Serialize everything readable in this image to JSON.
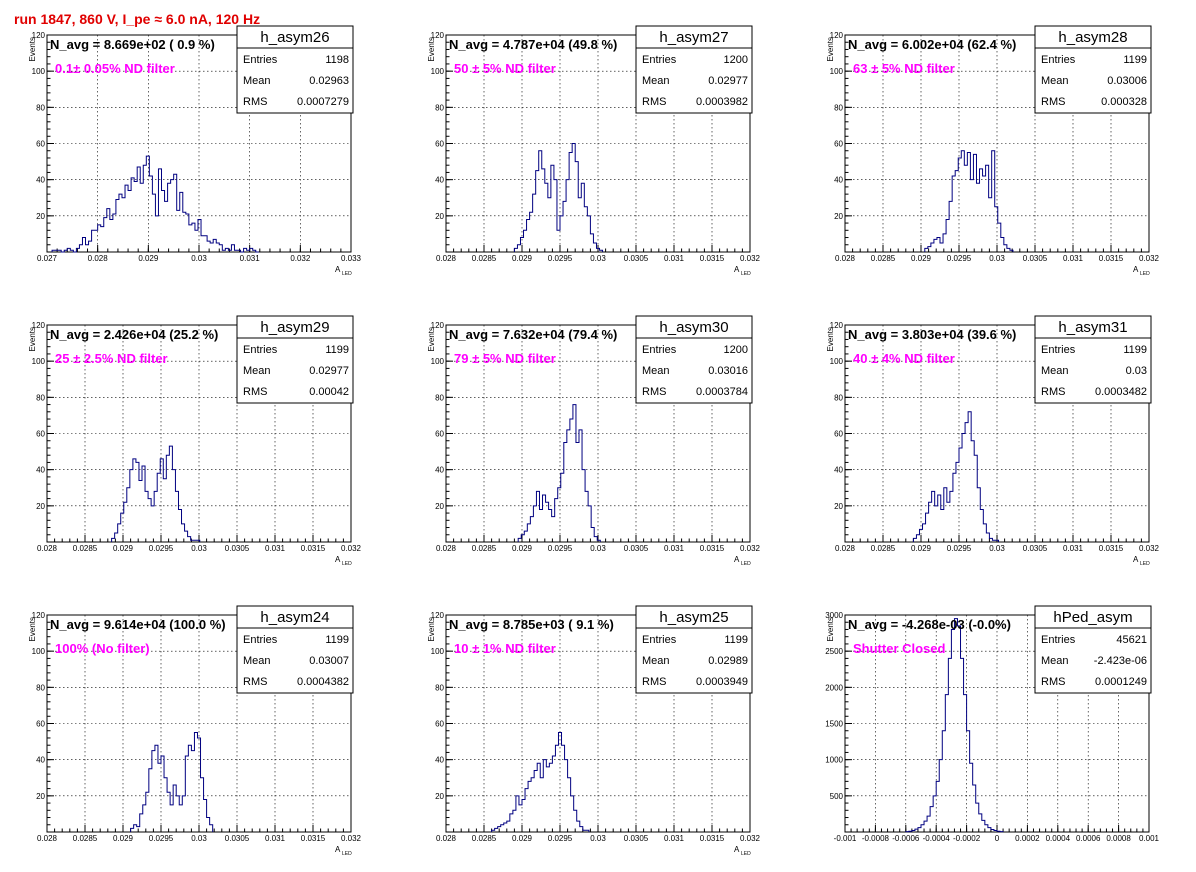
{
  "run_title": "run 1847,   860 V, I_pe ≈ 6.0 nA, 120 Hz",
  "hist_color": "#000080",
  "text_color_filter": "#ff00ff",
  "text_color_run": "#e00000",
  "chart_data": [
    {
      "type": "bar",
      "name": "h_asym26",
      "navg": "N_avg = 8.669e+02 ( 0.9 %)",
      "label": "0.1± 0.05% ND filter",
      "stats": {
        "entries_label": "Entries",
        "entries": "1198",
        "mean_label": "Mean",
        "mean": "0.02963",
        "rms_label": "RMS",
        "rms": "0.0007279"
      },
      "xlim": [
        0.027,
        0.033
      ],
      "ylim": [
        0,
        120
      ],
      "ylabel": "Events",
      "xlabel": "A",
      "xlabel_sub": "LED",
      "xticks": [
        0.027,
        0.028,
        0.029,
        0.03,
        0.031,
        0.032,
        0.033
      ],
      "xtick_labels": [
        "0.027",
        "0.028",
        "0.029",
        "0.03",
        "0.031",
        "0.032",
        "0.033"
      ],
      "yticks": [
        20,
        40,
        60,
        80,
        100,
        120
      ],
      "ytick_labels": [
        "20",
        "40",
        "60",
        "80",
        "100",
        "120"
      ],
      "bins_start": 0.0271,
      "bin_width": 6e-05,
      "values": [
        1,
        1,
        1,
        0,
        1,
        2,
        1,
        0,
        2,
        4,
        8,
        4,
        6,
        12,
        12,
        15,
        14,
        19,
        24,
        18,
        21,
        29,
        32,
        30,
        37,
        34,
        41,
        39,
        47,
        38,
        48,
        53,
        42,
        32,
        20,
        46,
        34,
        28,
        38,
        40,
        43,
        23,
        33,
        22,
        21,
        15,
        16,
        12,
        18,
        9,
        9,
        6,
        5,
        7,
        5,
        4,
        1,
        2,
        1,
        4,
        1,
        1,
        0,
        2,
        1,
        2,
        1,
        0
      ]
    },
    {
      "type": "bar",
      "name": "h_asym27",
      "navg": "N_avg = 4.787e+04 (49.8 %)",
      "label": "50 ± 5% ND filter",
      "stats": {
        "entries_label": "Entries",
        "entries": "1200",
        "mean_label": "Mean",
        "mean": "0.02977",
        "rms_label": "RMS",
        "rms": "0.0003982"
      },
      "xlim": [
        0.028,
        0.032
      ],
      "ylim": [
        0,
        120
      ],
      "ylabel": "Events",
      "xlabel": "A",
      "xlabel_sub": "LED",
      "xticks": [
        0.028,
        0.0285,
        0.029,
        0.0295,
        0.03,
        0.0305,
        0.031,
        0.0315,
        0.032
      ],
      "xtick_labels": [
        "0.028",
        "0.0285",
        "0.029",
        "0.0295",
        "0.03",
        "0.0305",
        "0.031",
        "0.0315",
        "0.032"
      ],
      "yticks": [
        20,
        40,
        60,
        80,
        100,
        120
      ],
      "ytick_labels": [
        "20",
        "40",
        "60",
        "80",
        "100",
        "120"
      ],
      "bins_start": 0.0289,
      "bin_width": 4e-05,
      "values": [
        2,
        4,
        8,
        12,
        18,
        22,
        32,
        45,
        56,
        46,
        38,
        30,
        48,
        40,
        12,
        20,
        28,
        40,
        55,
        60,
        50,
        30,
        38,
        25,
        20,
        10,
        5,
        2,
        1
      ]
    },
    {
      "type": "bar",
      "name": "h_asym28",
      "navg": "N_avg = 6.002e+04 (62.4 %)",
      "label": "63 ± 5% ND filter",
      "stats": {
        "entries_label": "Entries",
        "entries": "1199",
        "mean_label": "Mean",
        "mean": "0.03006",
        "rms_label": "RMS",
        "rms": "0.000328"
      },
      "xlim": [
        0.028,
        0.032
      ],
      "ylim": [
        0,
        120
      ],
      "ylabel": "Events",
      "xlabel": "A",
      "xlabel_sub": "LED",
      "xticks": [
        0.028,
        0.0285,
        0.029,
        0.0295,
        0.03,
        0.0305,
        0.031,
        0.0315,
        0.032
      ],
      "xtick_labels": [
        "0.028",
        "0.0285",
        "0.029",
        "0.0295",
        "0.03",
        "0.0305",
        "0.031",
        "0.0315",
        "0.032"
      ],
      "yticks": [
        20,
        40,
        60,
        80,
        100,
        120
      ],
      "ytick_labels": [
        "20",
        "40",
        "60",
        "80",
        "100",
        "120"
      ],
      "bins_start": 0.02905,
      "bin_width": 4e-05,
      "values": [
        2,
        3,
        5,
        7,
        8,
        5,
        10,
        18,
        28,
        42,
        45,
        52,
        56,
        48,
        55,
        40,
        54,
        38,
        46,
        42,
        48,
        30,
        56,
        25,
        16,
        8,
        4,
        2,
        1
      ]
    },
    {
      "type": "bar",
      "name": "h_asym29",
      "navg": "N_avg = 2.426e+04 (25.2 %)",
      "label": "25 ± 2.5% ND filter",
      "stats": {
        "entries_label": "Entries",
        "entries": "1199",
        "mean_label": "Mean",
        "mean": "0.02977",
        "rms_label": "RMS",
        "rms": "0.00042"
      },
      "xlim": [
        0.028,
        0.032
      ],
      "ylim": [
        0,
        120
      ],
      "ylabel": "Events",
      "xlabel": "A",
      "xlabel_sub": "LED",
      "xticks": [
        0.028,
        0.0285,
        0.029,
        0.0295,
        0.03,
        0.0305,
        0.031,
        0.0315,
        0.032
      ],
      "xtick_labels": [
        "0.028",
        "0.0285",
        "0.029",
        "0.0295",
        "0.03",
        "0.0305",
        "0.031",
        "0.0315",
        "0.032"
      ],
      "yticks": [
        20,
        40,
        60,
        80,
        100,
        120
      ],
      "ytick_labels": [
        "20",
        "40",
        "60",
        "80",
        "100",
        "120"
      ],
      "bins_start": 0.02885,
      "bin_width": 4e-05,
      "values": [
        2,
        5,
        10,
        16,
        22,
        30,
        40,
        46,
        44,
        34,
        42,
        28,
        24,
        20,
        28,
        38,
        46,
        35,
        48,
        53,
        40,
        28,
        18,
        10,
        6,
        3,
        1,
        1,
        1
      ]
    },
    {
      "type": "bar",
      "name": "h_asym30",
      "navg": "N_avg = 7.632e+04 (79.4 %)",
      "label": "79 ± 5% ND filter",
      "stats": {
        "entries_label": "Entries",
        "entries": "1200",
        "mean_label": "Mean",
        "mean": "0.03016",
        "rms_label": "RMS",
        "rms": "0.0003784"
      },
      "xlim": [
        0.028,
        0.032
      ],
      "ylim": [
        0,
        120
      ],
      "ylabel": "Events",
      "xlabel": "A",
      "xlabel_sub": "LED",
      "xticks": [
        0.028,
        0.0285,
        0.029,
        0.0295,
        0.03,
        0.0305,
        0.031,
        0.0315,
        0.032
      ],
      "xtick_labels": [
        "0.028",
        "0.0285",
        "0.029",
        "0.0295",
        "0.03",
        "0.0305",
        "0.031",
        "0.0315",
        "0.032"
      ],
      "yticks": [
        20,
        40,
        60,
        80,
        100,
        120
      ],
      "ytick_labels": [
        "20",
        "40",
        "60",
        "80",
        "100",
        "120"
      ],
      "bins_start": 0.02895,
      "bin_width": 4e-05,
      "values": [
        2,
        4,
        6,
        10,
        14,
        20,
        28,
        18,
        26,
        22,
        18,
        14,
        24,
        30,
        38,
        55,
        62,
        68,
        76,
        55,
        62,
        40,
        28,
        20,
        8,
        3,
        1
      ]
    },
    {
      "type": "bar",
      "name": "h_asym31",
      "navg": "N_avg = 3.803e+04 (39.6 %)",
      "label": "40 ± 4% ND filter",
      "stats": {
        "entries_label": "Entries",
        "entries": "1199",
        "mean_label": "Mean",
        "mean": "0.03",
        "rms_label": "RMS",
        "rms": "0.0003482"
      },
      "xlim": [
        0.028,
        0.032
      ],
      "ylim": [
        0,
        120
      ],
      "ylabel": "Events",
      "xlabel": "A",
      "xlabel_sub": "LED",
      "xticks": [
        0.028,
        0.0285,
        0.029,
        0.0295,
        0.03,
        0.0305,
        0.031,
        0.0315,
        0.032
      ],
      "xtick_labels": [
        "0.028",
        "0.0285",
        "0.029",
        "0.0295",
        "0.03",
        "0.0305",
        "0.031",
        "0.0315",
        "0.032"
      ],
      "yticks": [
        20,
        40,
        60,
        80,
        100,
        120
      ],
      "ytick_labels": [
        "20",
        "40",
        "60",
        "80",
        "100",
        "120"
      ],
      "bins_start": 0.0289,
      "bin_width": 4e-05,
      "values": [
        2,
        4,
        7,
        10,
        16,
        22,
        28,
        20,
        26,
        18,
        30,
        22,
        28,
        38,
        44,
        52,
        60,
        66,
        72,
        56,
        48,
        30,
        18,
        10,
        5,
        2,
        1,
        1
      ]
    },
    {
      "type": "bar",
      "name": "h_asym24",
      "navg": "N_avg = 9.614e+04 (100.0 %)",
      "label": "100% (No filter)",
      "stats": {
        "entries_label": "Entries",
        "entries": "1199",
        "mean_label": "Mean",
        "mean": "0.03007",
        "rms_label": "RMS",
        "rms": "0.0004382"
      },
      "xlim": [
        0.028,
        0.032
      ],
      "ylim": [
        0,
        120
      ],
      "ylabel": "Events",
      "xlabel": "A",
      "xlabel_sub": "LED",
      "xticks": [
        0.028,
        0.0285,
        0.029,
        0.0295,
        0.03,
        0.0305,
        0.031,
        0.0315,
        0.032
      ],
      "xtick_labels": [
        "0.028",
        "0.0285",
        "0.029",
        "0.0295",
        "0.03",
        "0.0305",
        "0.031",
        "0.0315",
        "0.032"
      ],
      "yticks": [
        20,
        40,
        60,
        80,
        100,
        120
      ],
      "ytick_labels": [
        "20",
        "40",
        "60",
        "80",
        "100",
        "120"
      ],
      "bins_start": 0.0291,
      "bin_width": 4e-05,
      "values": [
        2,
        4,
        3,
        10,
        15,
        22,
        35,
        45,
        48,
        38,
        42,
        30,
        22,
        15,
        26,
        20,
        15,
        20,
        42,
        48,
        45,
        55,
        52,
        30,
        18,
        8,
        4
      ]
    },
    {
      "type": "bar",
      "name": "h_asym25",
      "navg": "N_avg = 8.785e+03 ( 9.1 %)",
      "label": "10 ± 1% ND filter",
      "stats": {
        "entries_label": "Entries",
        "entries": "1199",
        "mean_label": "Mean",
        "mean": "0.02989",
        "rms_label": "RMS",
        "rms": "0.0003949"
      },
      "xlim": [
        0.028,
        0.032
      ],
      "ylim": [
        0,
        120
      ],
      "ylabel": "Events",
      "xlabel": "A",
      "xlabel_sub": "LED",
      "xticks": [
        0.028,
        0.0285,
        0.029,
        0.0295,
        0.03,
        0.0305,
        0.031,
        0.0315,
        0.032
      ],
      "xtick_labels": [
        "0.028",
        "0.0285",
        "0.029",
        "0.0295",
        "0.03",
        "0.0305",
        "0.031",
        "0.0315",
        "0.032"
      ],
      "yticks": [
        20,
        40,
        60,
        80,
        100,
        120
      ],
      "ytick_labels": [
        "20",
        "40",
        "60",
        "80",
        "100",
        "120"
      ],
      "bins_start": 0.0286,
      "bin_width": 4e-05,
      "values": [
        1,
        2,
        3,
        4,
        5,
        6,
        10,
        12,
        20,
        15,
        18,
        24,
        28,
        30,
        34,
        38,
        30,
        40,
        36,
        38,
        42,
        48,
        55,
        48,
        40,
        30,
        20,
        12,
        6,
        3,
        1,
        1
      ]
    },
    {
      "type": "bar",
      "name": "hPed_asym",
      "navg": "N_avg = -4.268e-03 (-0.0%)",
      "label": "Shutter Closed",
      "stats": {
        "entries_label": "Entries",
        "entries": "45621",
        "mean_label": "Mean",
        "mean": "-2.423e-06",
        "rms_label": "RMS",
        "rms": "0.0001249"
      },
      "xlim": [
        -0.001,
        0.001
      ],
      "ylim": [
        0,
        3000
      ],
      "ylabel": "Events",
      "xlabel": "",
      "xlabel_sub": "",
      "xticks": [
        -0.001,
        -0.0008,
        -0.0006,
        -0.0004,
        -0.0002,
        0,
        0.0002,
        0.0004,
        0.0006,
        0.0008,
        0.001
      ],
      "xtick_labels": [
        "-0.001",
        "-0.0008",
        "-0.0006",
        "-0.0004",
        "-0.0002",
        "0",
        "0.0002",
        "0.0004",
        "0.0006",
        "0.0008",
        "0.001"
      ],
      "yticks": [
        500,
        1000,
        1500,
        2000,
        2500,
        3000
      ],
      "ytick_labels": [
        "500",
        "1000",
        "1500",
        "2000",
        "2500",
        "3000"
      ],
      "bins_start": -0.0006,
      "bin_width": 2e-05,
      "values": [
        5,
        10,
        20,
        40,
        60,
        100,
        150,
        220,
        350,
        500,
        700,
        1000,
        1400,
        1900,
        2400,
        2800,
        2950,
        2850,
        2400,
        1900,
        1400,
        950,
        650,
        400,
        250,
        160,
        100,
        60,
        35,
        20,
        10,
        5
      ]
    }
  ]
}
